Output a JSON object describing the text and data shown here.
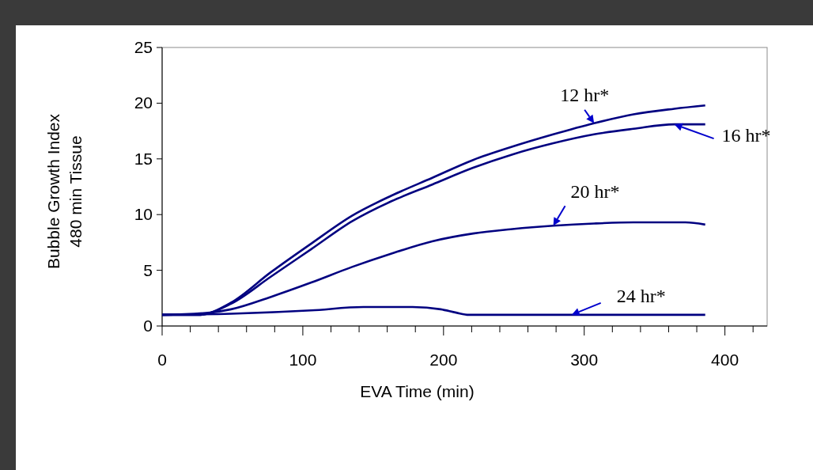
{
  "chart_data": {
    "type": "line",
    "xlabel": "EVA Time (min)",
    "ylabel": "Bubble Growth Index\n480 min Tissue",
    "xlim": [
      0,
      430
    ],
    "xticks": [
      0,
      {
        "value": 20,
        "label": null
      },
      {
        "value": 40,
        "label": null
      },
      {
        "value": 60,
        "label": null
      },
      {
        "value": 80,
        "label": null
      },
      100,
      {
        "value": 120,
        "label": null
      },
      {
        "value": 140,
        "label": null
      },
      {
        "value": 160,
        "label": null
      },
      {
        "value": 180,
        "label": null
      },
      200,
      {
        "value": 220,
        "label": null
      },
      {
        "value": 240,
        "label": null
      },
      {
        "value": 260,
        "label": null
      },
      {
        "value": 280,
        "label": null
      },
      300,
      {
        "value": 320,
        "label": null
      },
      {
        "value": 340,
        "label": null
      },
      {
        "value": 360,
        "label": null
      },
      {
        "value": 380,
        "label": null
      },
      400,
      {
        "value": 420,
        "label": null
      }
    ],
    "ylim": [
      0,
      25
    ],
    "yticks": [
      0,
      5,
      10,
      15,
      20,
      25
    ],
    "grid": false,
    "marker": "none",
    "line_style": "solid",
    "series": [
      {
        "color": "#000080",
        "x": [
          0,
          26,
          49,
          77,
          106,
          135,
          163,
          192,
          221,
          249,
          278,
          307,
          335,
          364,
          386
        ],
        "values": [
          1,
          1,
          2.1,
          4.8,
          7.4,
          9.9,
          11.7,
          13.3,
          14.9,
          16.1,
          17.2,
          18.2,
          19,
          19.5,
          19.8
        ]
      },
      {
        "color": "#000080",
        "x": [
          0,
          26,
          49,
          77,
          106,
          135,
          163,
          192,
          221,
          249,
          278,
          307,
          335,
          364,
          386
        ],
        "values": [
          1,
          1,
          2,
          4.4,
          6.9,
          9.4,
          11.2,
          12.7,
          14.2,
          15.4,
          16.4,
          17.2,
          17.7,
          18.1,
          18.1
        ]
      },
      {
        "color": "#000080",
        "x": [
          0,
          34,
          49,
          77,
          106,
          135,
          163,
          192,
          221,
          249,
          278,
          307,
          335,
          372,
          386
        ],
        "values": [
          1,
          1.2,
          1.5,
          2.6,
          3.9,
          5.3,
          6.5,
          7.6,
          8.3,
          8.7,
          9,
          9.2,
          9.3,
          9.3,
          9.1
        ]
      },
      {
        "color": "#000080",
        "x": [
          0,
          49,
          106,
          143,
          178,
          198,
          209,
          218,
          386
        ],
        "values": [
          1,
          1.1,
          1.4,
          1.7,
          1.7,
          1.5,
          1.2,
          1,
          1
        ]
      }
    ],
    "annotations": [
      {
        "text": "12 hr*",
        "x": 307,
        "y": 18.2
      },
      {
        "text": "16 hr*",
        "x": 364,
        "y": 18.1
      },
      {
        "text": "20 hr*",
        "x": 278,
        "y": 9
      },
      {
        "text": "24 hr*",
        "x": 291,
        "y": 1
      }
    ]
  }
}
